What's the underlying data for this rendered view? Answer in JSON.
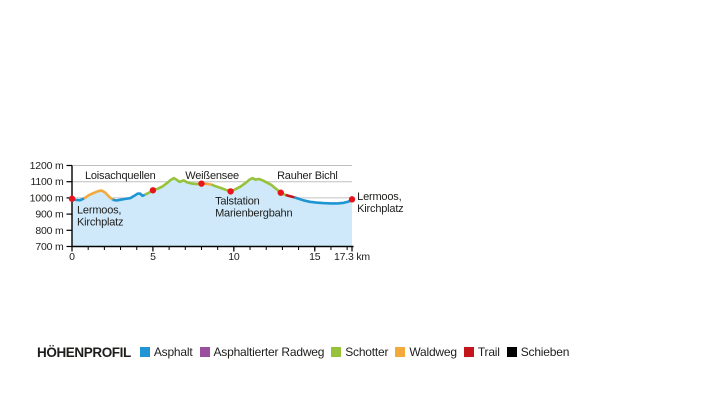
{
  "chart_data": {
    "type": "area",
    "title": "Höhenprofil",
    "xlabel_unit": "km",
    "ylabel_unit": "m",
    "xlim": [
      0,
      17.3
    ],
    "ylim": [
      700,
      1200
    ],
    "grid": true,
    "grid_values": [
      800,
      900,
      1000,
      1100,
      1200
    ],
    "ytick_values": [
      700,
      800,
      900,
      1000,
      1100,
      1200
    ],
    "ytick_labels": [
      "700 m",
      "800 m",
      "900 m",
      "1000 m",
      "1100 m",
      "1200 m"
    ],
    "xtick_major_values": [
      0,
      5,
      10,
      15,
      17.3
    ],
    "xtick_major_labels": [
      "0",
      "5",
      "10",
      "15",
      "17.3 km"
    ],
    "xtick_minor_step": 1,
    "colors": {
      "fill": "#cfe9fa",
      "grid": "#c0c0c0",
      "axis": "#000000",
      "dot": "#e8141c",
      "text": "#1d1d1b"
    },
    "surface_colors": {
      "asphalt": "#2095d3",
      "asphaltierter_radweg": "#9b4f9e",
      "schotter": "#97c23c",
      "waldweg": "#f3a93b",
      "trail": "#c4161b",
      "schieben": "#000000"
    },
    "segments": [
      {
        "surface": "asphalt",
        "points": [
          [
            0,
            995
          ],
          [
            0.25,
            987
          ],
          [
            0.5,
            986
          ],
          [
            0.75,
            997
          ]
        ]
      },
      {
        "surface": "waldweg",
        "points": [
          [
            0.75,
            997
          ],
          [
            1.05,
            1017
          ],
          [
            1.35,
            1031
          ],
          [
            1.65,
            1043
          ],
          [
            1.85,
            1045
          ],
          [
            2.05,
            1033
          ],
          [
            2.25,
            1012
          ],
          [
            2.5,
            989
          ]
        ]
      },
      {
        "surface": "asphalt",
        "points": [
          [
            2.5,
            989
          ],
          [
            2.75,
            984
          ],
          [
            3.0,
            989
          ],
          [
            3.3,
            994
          ],
          [
            3.6,
            999
          ],
          [
            3.85,
            1013
          ],
          [
            4.05,
            1026
          ],
          [
            4.2,
            1027
          ],
          [
            4.35,
            1013
          ],
          [
            4.5,
            1019
          ]
        ]
      },
      {
        "surface": "schotter",
        "points": [
          [
            4.5,
            1019
          ],
          [
            4.75,
            1032
          ],
          [
            5.0,
            1047
          ],
          [
            5.3,
            1057
          ],
          [
            5.6,
            1071
          ],
          [
            5.9,
            1094
          ],
          [
            6.1,
            1111
          ],
          [
            6.3,
            1122
          ],
          [
            6.5,
            1109
          ],
          [
            6.65,
            1099
          ],
          [
            6.9,
            1108
          ],
          [
            7.1,
            1097
          ],
          [
            7.4,
            1088
          ],
          [
            7.7,
            1085
          ],
          [
            8.0,
            1088
          ]
        ]
      },
      {
        "surface": "waldweg",
        "points": [
          [
            8.0,
            1088
          ],
          [
            8.3,
            1087
          ],
          [
            8.6,
            1083
          ]
        ]
      },
      {
        "surface": "schotter",
        "points": [
          [
            8.6,
            1083
          ],
          [
            8.9,
            1071
          ],
          [
            9.2,
            1061
          ],
          [
            9.5,
            1050
          ],
          [
            9.8,
            1040
          ],
          [
            10.1,
            1054
          ],
          [
            10.4,
            1069
          ],
          [
            10.7,
            1091
          ],
          [
            10.95,
            1111
          ],
          [
            11.15,
            1122
          ],
          [
            11.35,
            1112
          ],
          [
            11.55,
            1117
          ],
          [
            11.8,
            1107
          ],
          [
            12.0,
            1097
          ],
          [
            12.3,
            1081
          ],
          [
            12.6,
            1057
          ],
          [
            12.9,
            1032
          ],
          [
            13.2,
            1018
          ]
        ]
      },
      {
        "surface": "trail",
        "points": [
          [
            13.2,
            1018
          ],
          [
            13.45,
            1011
          ],
          [
            13.75,
            1003
          ]
        ]
      },
      {
        "surface": "asphalt",
        "points": [
          [
            13.75,
            1003
          ],
          [
            14.0,
            995
          ],
          [
            14.3,
            985
          ],
          [
            14.7,
            976
          ],
          [
            15.1,
            971
          ],
          [
            15.5,
            968
          ],
          [
            16.0,
            966
          ],
          [
            16.4,
            966
          ],
          [
            16.8,
            970
          ],
          [
            17.1,
            978
          ],
          [
            17.3,
            991
          ]
        ]
      }
    ],
    "waypoints": [
      {
        "km": 0,
        "m": 995
      },
      {
        "km": 5.0,
        "m": 1047
      },
      {
        "km": 8.0,
        "m": 1088
      },
      {
        "km": 9.8,
        "m": 1040
      },
      {
        "km": 12.9,
        "m": 1032
      },
      {
        "km": 17.3,
        "m": 991
      }
    ],
    "annotations": [
      {
        "text": "Loisachquellen",
        "km": 0.8,
        "m": 1117
      },
      {
        "text": "Weißensee",
        "km": 7.0,
        "m": 1117
      },
      {
        "text": "Rauher Bichl",
        "km": 12.67,
        "m": 1117
      }
    ],
    "waypoint_labels": [
      {
        "lines": [
          "Lermoos,",
          "Kirchplatz"
        ],
        "km": 0.31,
        "m": 904
      },
      {
        "lines": [
          "Talstation",
          "Marienbergbahn"
        ],
        "km": 8.84,
        "m": 959
      },
      {
        "lines": [
          "Lermoos,",
          "Kirchplatz"
        ],
        "km": 17.62,
        "m": 987
      }
    ]
  },
  "legend": {
    "title": "HÖHENPROFIL",
    "items": [
      {
        "key": "asphalt",
        "label": "Asphalt",
        "color": "#2095d3"
      },
      {
        "key": "asphaltierter-radweg",
        "label": "Asphaltierter Radweg",
        "color": "#9b4f9e"
      },
      {
        "key": "schotter",
        "label": "Schotter",
        "color": "#97c23c"
      },
      {
        "key": "waldweg",
        "label": "Waldweg",
        "color": "#f3a93b"
      },
      {
        "key": "trail",
        "label": "Trail",
        "color": "#c4161b"
      },
      {
        "key": "schieben",
        "label": "Schieben",
        "color": "#000000"
      }
    ]
  }
}
